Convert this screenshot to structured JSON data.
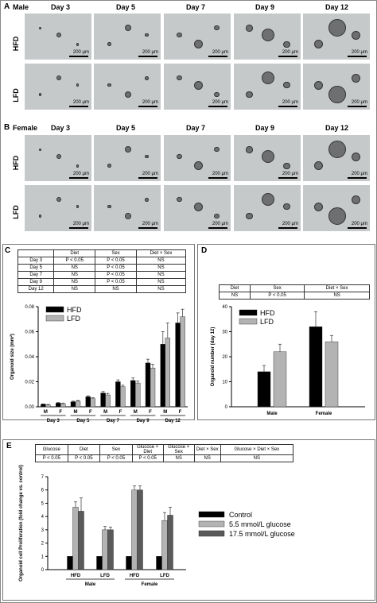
{
  "panel_a": {
    "label": "A",
    "sex": "Male",
    "days": [
      "Day 3",
      "Day 5",
      "Day 7",
      "Day 9",
      "Day 12"
    ],
    "rows": [
      "HFD",
      "LFD"
    ],
    "scale": "200 μm"
  },
  "panel_b": {
    "label": "B",
    "sex": "Female",
    "days": [
      "Day 3",
      "Day 5",
      "Day 7",
      "Day 9",
      "Day 12"
    ],
    "rows": [
      "HFD",
      "LFD"
    ],
    "scale": "200 μm"
  },
  "panel_c": {
    "label": "C",
    "table_header": [
      "",
      "Diet",
      "Sex",
      "Diet × Sex"
    ],
    "table_rows": [
      [
        "Day 3",
        "P < 0.05",
        "P < 0.05",
        "NS"
      ],
      [
        "Day 5",
        "NS",
        "P < 0.05",
        "NS"
      ],
      [
        "Day 7",
        "NS",
        "P < 0.05",
        "NS"
      ],
      [
        "Day 9",
        "NS",
        "P < 0.05",
        "NS"
      ],
      [
        "Day 12",
        "NS",
        "NS",
        "NS"
      ]
    ]
  },
  "panel_d": {
    "label": "D",
    "table_header": [
      "Diet",
      "Sex",
      "Diet × Sex"
    ],
    "table_rows": [
      [
        "NS",
        "P < 0.05",
        "NS"
      ]
    ]
  },
  "panel_e": {
    "label": "E",
    "table_header": [
      "Glucose",
      "Diet",
      "Sex",
      "Glucose × Diet",
      "Glucose × Sex",
      "Diet × Sex",
      "Glucose × Diet × Sex"
    ],
    "table_rows": [
      [
        "P < 0.05",
        "P < 0.05",
        "P < 0.05",
        "P < 0.05",
        "NS",
        "NS",
        "NS"
      ]
    ]
  },
  "colors": {
    "hfd": "#000000",
    "lfd": "#b3b3b3",
    "control": "#000000",
    "g55": "#b3b3b3",
    "g175": "#5a5a5a"
  },
  "chart_data": [
    {
      "type": "bar",
      "panel": "C",
      "ylabel": "Organoid size (mm²)",
      "ylim": [
        0,
        0.08
      ],
      "yticks": [
        0,
        0.02,
        0.04,
        0.06,
        0.08
      ],
      "ytick_labels": [
        "0.00",
        "0.02",
        "0.04",
        "0.06",
        "0.08"
      ],
      "categories": [
        "M",
        "F",
        "M",
        "F",
        "M",
        "F",
        "M",
        "F",
        "M",
        "F"
      ],
      "groups": [
        "Day 3",
        "Day 5",
        "Day 7",
        "Day 9",
        "Day 12"
      ],
      "series": [
        {
          "name": "HFD",
          "values": [
            0.002,
            0.003,
            0.004,
            0.008,
            0.011,
            0.02,
            0.021,
            0.035,
            0.05,
            0.067
          ],
          "errors": [
            0.0003,
            0.0004,
            0.0005,
            0.0008,
            0.0012,
            0.0015,
            0.002,
            0.003,
            0.01,
            0.008
          ]
        },
        {
          "name": "LFD",
          "values": [
            0.0015,
            0.0025,
            0.0045,
            0.0065,
            0.0095,
            0.016,
            0.019,
            0.031,
            0.055,
            0.072
          ],
          "errors": [
            0.0003,
            0.0004,
            0.0005,
            0.0007,
            0.0012,
            0.0012,
            0.0015,
            0.003,
            0.012,
            0.006
          ]
        }
      ],
      "legend": "top-left"
    },
    {
      "type": "bar",
      "panel": "D",
      "ylabel": "Organoid number (day 12)",
      "ylim": [
        0,
        40
      ],
      "yticks": [
        0,
        10,
        20,
        30,
        40
      ],
      "categories": [
        "Male",
        "Female"
      ],
      "series": [
        {
          "name": "HFD",
          "values": [
            14,
            32
          ],
          "errors": [
            2.5,
            6
          ]
        },
        {
          "name": "LFD",
          "values": [
            22,
            26
          ],
          "errors": [
            3,
            2.5
          ]
        }
      ],
      "legend": "top-left"
    },
    {
      "type": "bar",
      "panel": "E",
      "ylabel": "Organoid cell Proliferation (fold change vs. control)",
      "ylim": [
        0,
        7
      ],
      "yticks": [
        0,
        1,
        2,
        3,
        4,
        5,
        6,
        7
      ],
      "categories": [
        "HFD",
        "LFD",
        "HFD",
        "LFD"
      ],
      "groups": [
        "Male",
        "Female"
      ],
      "series": [
        {
          "name": "Control",
          "values": [
            1,
            1,
            1,
            1
          ],
          "errors": [
            0,
            0,
            0,
            0
          ]
        },
        {
          "name": "5.5 mmol/L glucose",
          "values": [
            4.7,
            3.0,
            6.0,
            3.7
          ],
          "errors": [
            0.4,
            0.25,
            0.3,
            0.6
          ]
        },
        {
          "name": "17.5 mmol/L glucose",
          "values": [
            4.4,
            3.0,
            6.0,
            4.1
          ],
          "errors": [
            1.0,
            0.2,
            0.3,
            0.6
          ]
        }
      ],
      "legend": "right"
    }
  ]
}
